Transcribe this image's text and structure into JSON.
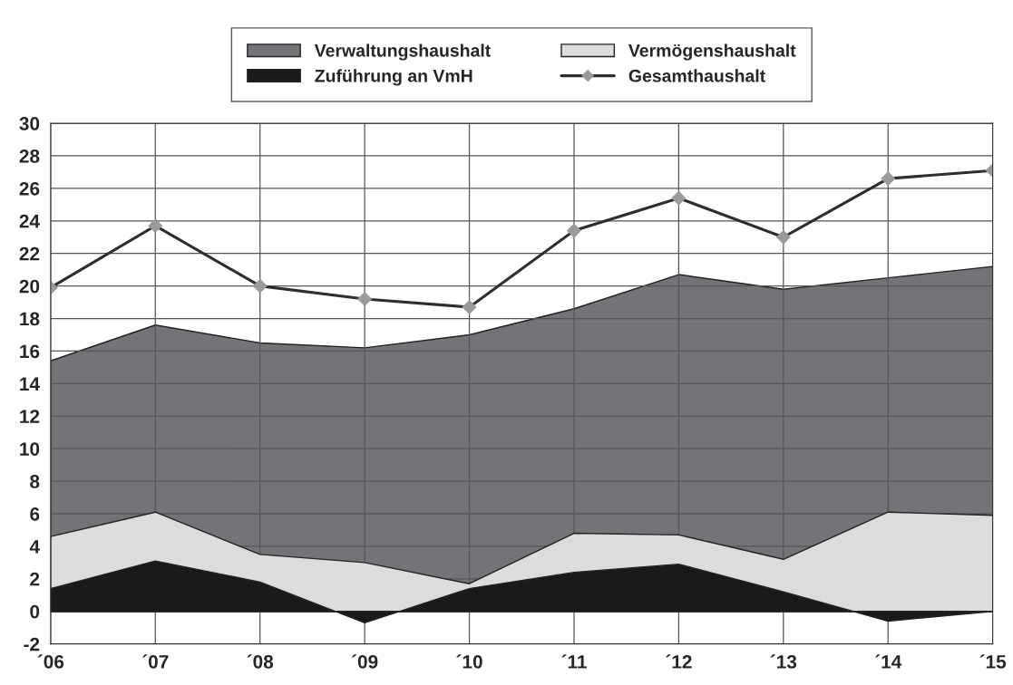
{
  "chart_data": {
    "type": "area",
    "categories": [
      "´06",
      "´07",
      "´08",
      "´09",
      "´10",
      "´11",
      "´12",
      "´13",
      "´14",
      "´15"
    ],
    "series": [
      {
        "name": "Verwaltungshaushalt",
        "color": "#737477",
        "values": [
          15.4,
          17.6,
          16.5,
          16.2,
          17.0,
          18.6,
          20.7,
          19.8,
          20.5,
          21.2
        ]
      },
      {
        "name": "Vermögenshaushalt",
        "color": "#dcdcdd",
        "values": [
          4.6,
          6.1,
          3.5,
          3.0,
          1.7,
          4.8,
          4.7,
          3.2,
          6.1,
          5.9
        ]
      },
      {
        "name": "Zuführung an VmH",
        "color": "#1a1a1a",
        "values": [
          1.4,
          3.1,
          1.8,
          -0.7,
          1.4,
          2.4,
          2.9,
          1.2,
          -0.6,
          0.0
        ]
      },
      {
        "name": "Gesamthaushalt",
        "type": "line",
        "marker": "diamond",
        "color": "#2e2e2e",
        "values": [
          19.9,
          23.7,
          20.0,
          19.2,
          18.7,
          23.4,
          25.4,
          23.0,
          26.6,
          27.1
        ]
      }
    ],
    "ylim": [
      -2,
      30
    ],
    "yticks": [
      -2,
      0,
      2,
      4,
      6,
      8,
      10,
      12,
      14,
      16,
      18,
      20,
      22,
      24,
      26,
      28,
      30
    ],
    "grid": true,
    "legend": "top"
  }
}
